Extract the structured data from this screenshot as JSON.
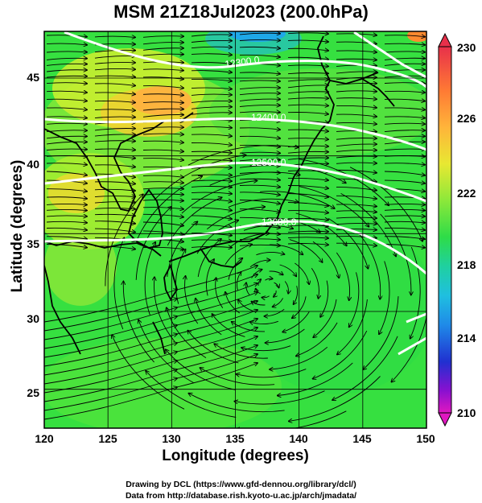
{
  "title": "MSM 21Z18Jul2023 (200.0hPa)",
  "x_axis": {
    "label": "Longitude (degrees)",
    "ticks": [
      "120",
      "125",
      "130",
      "135",
      "140",
      "145",
      "150"
    ]
  },
  "y_axis": {
    "label": "Latitude  (degrees)",
    "ticks": [
      "25",
      "30",
      "35",
      "40",
      "45"
    ]
  },
  "colorbar": {
    "ticks": [
      "230",
      "226",
      "222",
      "218",
      "214",
      "210"
    ],
    "colors": [
      "#e0004c",
      "#ff6a3a",
      "#ffa53a",
      "#ffd23a",
      "#f0f030",
      "#b8f040",
      "#6fea38",
      "#2fdc4a",
      "#1ed08f",
      "#1ec6c8",
      "#1fa8e8",
      "#1f68e0",
      "#2030d0",
      "#5a10d0",
      "#a010c8",
      "#e010c0"
    ]
  },
  "contours": [
    "12300.0",
    "12400.0",
    "12500.0",
    "12600.0"
  ],
  "credits": {
    "line1": "Drawing by DCL (https://www.gfd-dennou.org/library/dcl/)",
    "line2": "Data from http://database.rish.kyoto-u.ac.jp/arch/jmadata/"
  },
  "chart_data": {
    "type": "map",
    "variable": "temperature (K) with geopotential height contours and wind streamlines at 200.0hPa",
    "xlim": [
      120,
      150
    ],
    "ylim": [
      22.5,
      48
    ],
    "colorbar_range": [
      210,
      230
    ],
    "contour_levels": [
      12300.0,
      12400.0,
      12500.0,
      12600.0
    ],
    "cyclonic_center": {
      "lon": 137.5,
      "lat": 31.5
    },
    "palette": {
      "warm_max": "#ff8a30",
      "mid": "#a8ee30",
      "low": "#28c8a0",
      "cold": "#1f8ae8"
    }
  }
}
